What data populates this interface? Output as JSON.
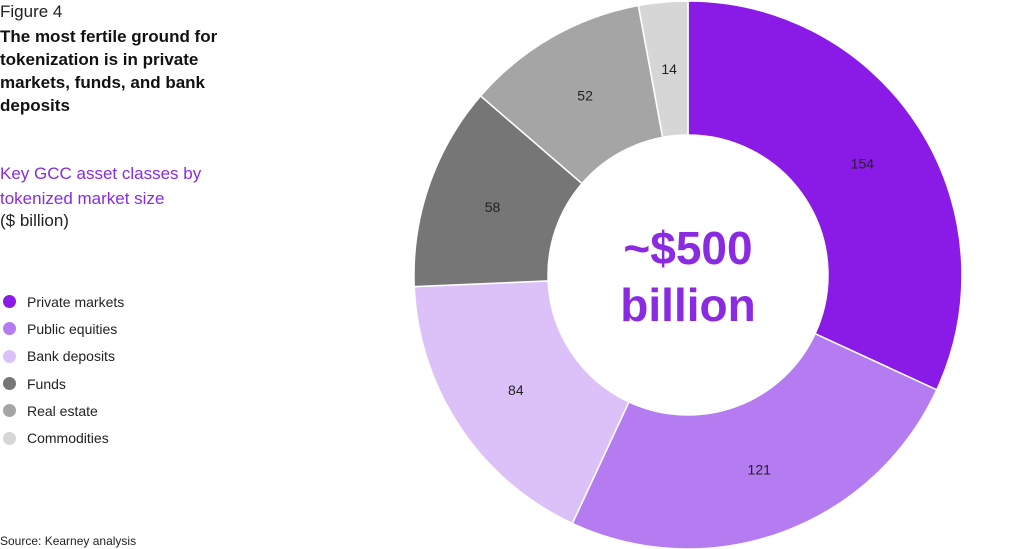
{
  "figure_label": "Figure 4",
  "headline": "The most fertile ground for tokenization is in private markets, funds, and bank deposits",
  "subtitle": "Key GCC asset classes by tokenized market size",
  "unit": "($ billion)",
  "source": "Source: Kearney analysis",
  "chart_data": {
    "type": "pie",
    "donut": true,
    "center_text": [
      "~$500",
      "billion"
    ],
    "legend_position": "left",
    "slices": [
      {
        "name": "Private markets",
        "value": 154,
        "label": "154",
        "color": "#8a1be6"
      },
      {
        "name": "Public equities",
        "value": 121,
        "label": "121",
        "color": "#b57cf2"
      },
      {
        "name": "Bank deposits",
        "value": 84,
        "label": "84",
        "color": "#dcc0f8"
      },
      {
        "name": "Funds",
        "value": 58,
        "label": "58",
        "color": "#767676"
      },
      {
        "name": "Real estate",
        "value": 52,
        "label": "52",
        "color": "#a5a5a5"
      },
      {
        "name": "Commodities",
        "value": 14,
        "label": "14",
        "color": "#d6d6d6"
      }
    ]
  }
}
